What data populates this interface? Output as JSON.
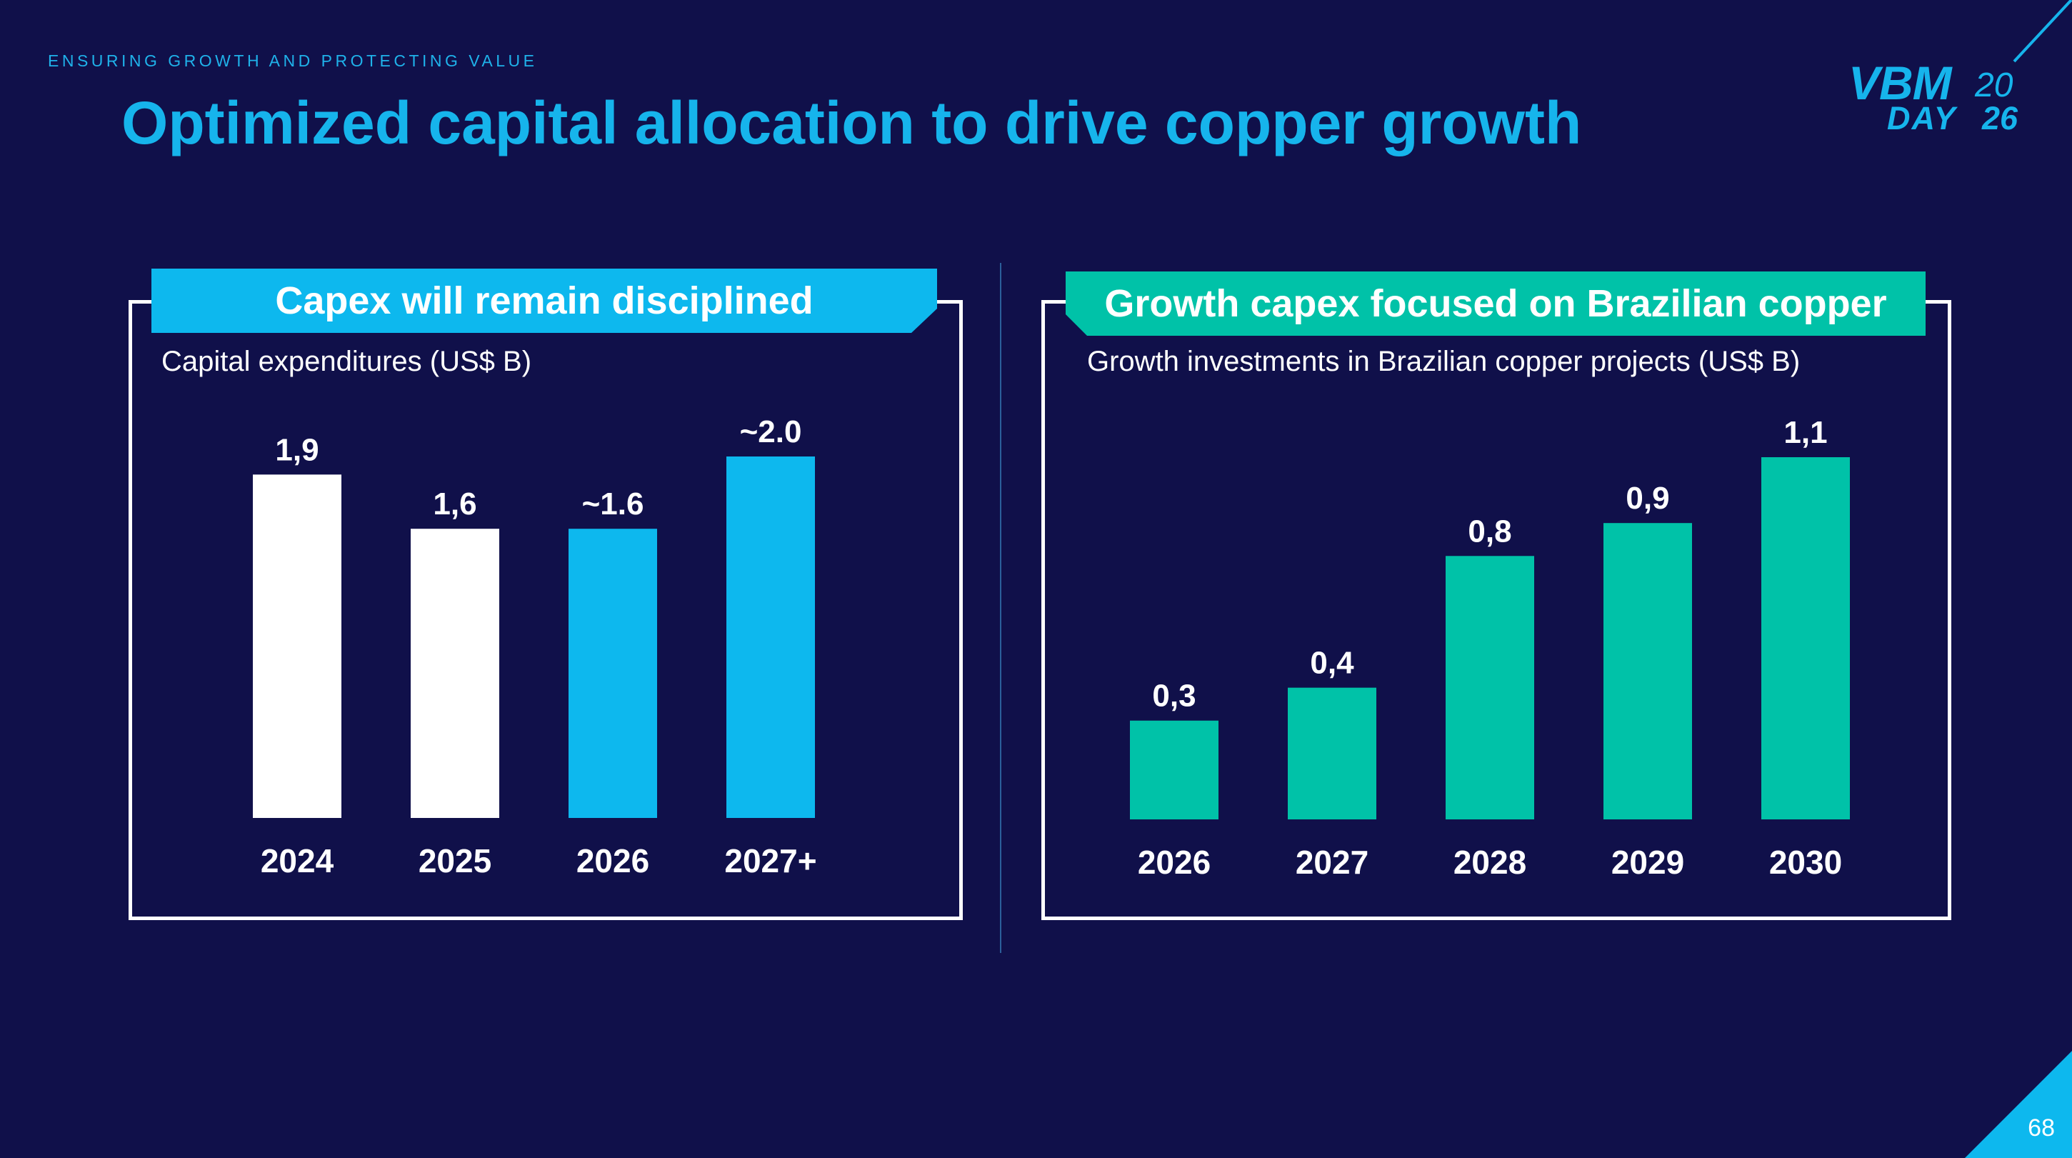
{
  "slide": {
    "eyebrow": "ENSURING GROWTH AND PROTECTING VALUE",
    "title": "Optimized capital allocation to drive copper growth",
    "logo": {
      "line1": "VBM",
      "year_top": "20",
      "line2": "DAY",
      "year_bottom": "26"
    },
    "page_number": "68",
    "colors": {
      "background": "#10104a",
      "accent_blue": "#0db8ee",
      "accent_green": "#00c2a8",
      "white": "#ffffff"
    }
  },
  "left_panel": {
    "header": "Capex will remain disciplined",
    "subtitle": "Capital expenditures (US$ B)"
  },
  "right_panel": {
    "header": "Growth capex focused on Brazilian copper",
    "subtitle": "Growth investments in Brazilian copper projects  (US$ B)"
  },
  "chart_data": [
    {
      "type": "bar",
      "title": "Capex will remain disciplined",
      "ylabel": "Capital expenditures (US$ B)",
      "categories": [
        "2024",
        "2025",
        "2026",
        "2027+"
      ],
      "values": [
        1.9,
        1.6,
        1.6,
        2.0
      ],
      "value_labels": [
        "1,9",
        "1,6",
        "~1.6",
        "~2.0"
      ],
      "bar_colors": [
        "#ffffff",
        "#ffffff",
        "#0db8ee",
        "#0db8ee"
      ],
      "ylim": [
        0,
        2.0
      ]
    },
    {
      "type": "bar",
      "title": "Growth capex focused on Brazilian copper",
      "ylabel": "Growth investments in Brazilian copper projects  (US$ B)",
      "categories": [
        "2026",
        "2027",
        "2028",
        "2029",
        "2030"
      ],
      "values": [
        0.3,
        0.4,
        0.8,
        0.9,
        1.1
      ],
      "value_labels": [
        "0,3",
        "0,4",
        "0,8",
        "0,9",
        "1,1"
      ],
      "bar_colors": [
        "#00c2a8",
        "#00c2a8",
        "#00c2a8",
        "#00c2a8",
        "#00c2a8"
      ],
      "ylim": [
        0,
        1.1
      ]
    }
  ]
}
